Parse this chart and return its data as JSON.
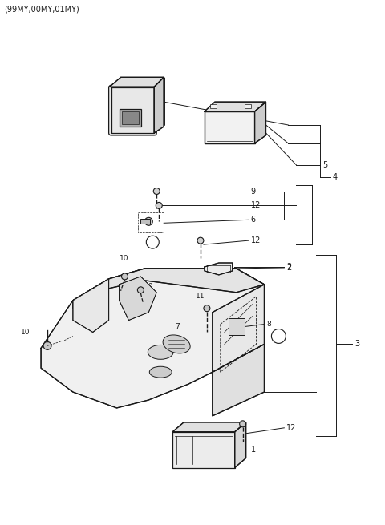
{
  "title_text": "(99MY,00MY,01MY)",
  "bg_color": "#ffffff",
  "line_color": "#1a1a1a",
  "figsize": [
    4.8,
    6.55
  ],
  "dpi": 100,
  "gray_light": "#e8e8e8",
  "gray_mid": "#cccccc",
  "gray_dark": "#aaaaaa"
}
